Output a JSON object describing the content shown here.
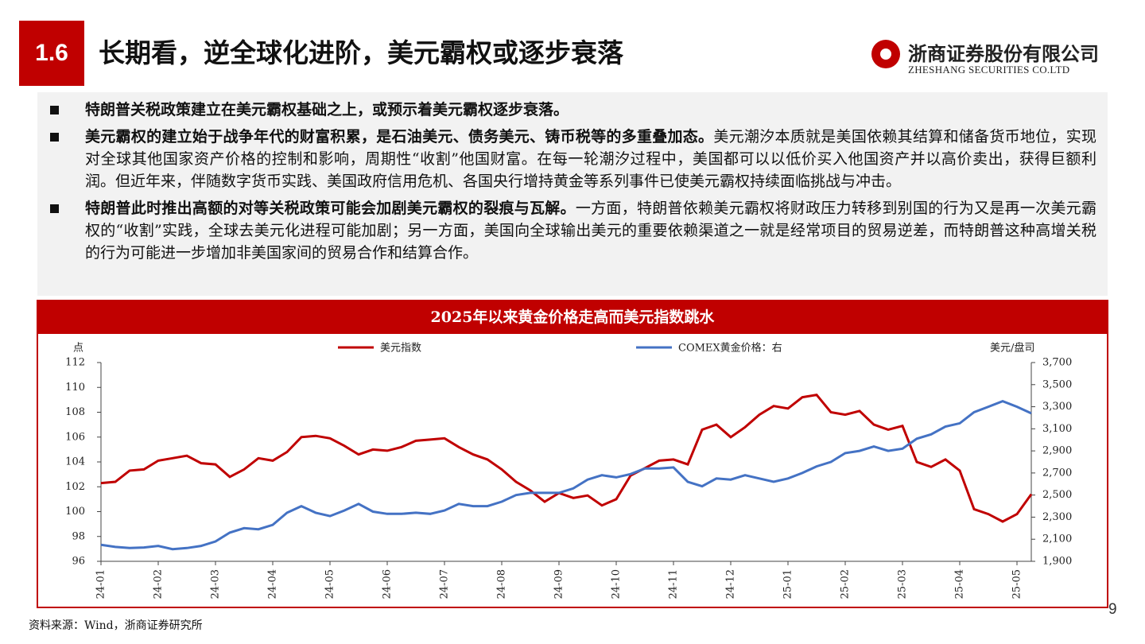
{
  "header": {
    "badge": "1.6",
    "title": "长期看，逆全球化进阶，美元霸权或逐步衰落"
  },
  "logo": {
    "name": "浙商证券股份有限公司",
    "english": "ZHESHANG SECURITIES CO.LTD"
  },
  "bullets": [
    {
      "bold": "特朗普关税政策建立在美元霸权基础之上，或预示着美元霸权逐步衰落。"
    },
    {
      "bold": "美元霸权的建立始于战争年代的财富积累，是石油美元、债务美元、铸币税等的多重叠加态。",
      "text": "美元潮汐本质就是美国依赖其结算和储备货币地位，实现对全球其他国家资产价格的控制和影响，周期性“收割”他国财富。在每一轮潮汐过程中，美国都可以以低价买入他国资产并以高价卖出，获得巨额利润。但近年来，伴随数字货币实践、美国政府信用危机、各国央行增持黄金等系列事件已使美元霸权持续面临挑战与冲击。"
    },
    {
      "bold": "特朗普此时推出高额的对等关税政策可能会加剧美元霸权的裂痕与瓦解。",
      "text": "一方面，特朗普依赖美元霸权将财政压力转移到别国的行为又是再一次美元霸权的“收割”实践，全球去美元化进程可能加剧；另一方面，美国向全球输出美元的重要依赖渠道之一就是经常项目的贸易逆差，而特朗普这种高增关税的行为可能进一步增加非美国家间的贸易合作和结算合作。"
    }
  ],
  "chart_data": {
    "type": "line",
    "title": "2025年以来黄金价格走高而美元指数跳水",
    "y_label": "点",
    "y2_label": "美元/盘司",
    "categories": [
      "24-01",
      null,
      null,
      null,
      "24-02",
      null,
      null,
      null,
      "24-03",
      null,
      null,
      null,
      "24-04",
      null,
      null,
      null,
      "24-05",
      null,
      null,
      null,
      "24-06",
      null,
      null,
      null,
      "24-07",
      null,
      null,
      null,
      "24-08",
      null,
      null,
      null,
      "24-09",
      null,
      null,
      null,
      "24-10",
      null,
      null,
      null,
      "24-11",
      null,
      null,
      null,
      "24-12",
      null,
      null,
      null,
      "25-01",
      null,
      null,
      null,
      "25-02",
      null,
      null,
      null,
      "25-03",
      null,
      null,
      null,
      "25-04",
      null,
      null,
      null,
      "25-05",
      null
    ],
    "series": [
      {
        "name": "美元指数",
        "color": "#c00000",
        "values": [
          102.3,
          102.4,
          103.3,
          103.4,
          104.1,
          104.3,
          104.5,
          103.9,
          103.8,
          102.8,
          103.4,
          104.3,
          104.1,
          104.8,
          106.0,
          106.1,
          105.9,
          105.3,
          104.6,
          105.0,
          104.9,
          105.2,
          105.7,
          105.8,
          105.9,
          105.2,
          104.6,
          104.2,
          103.4,
          102.4,
          101.7,
          100.8,
          101.5,
          101.1,
          101.3,
          100.5,
          101.0,
          102.9,
          103.5,
          104.1,
          104.2,
          103.8,
          106.6,
          107.0,
          106.0,
          106.8,
          107.8,
          108.5,
          108.3,
          109.2,
          109.4,
          108.0,
          107.8,
          108.1,
          107.0,
          106.6,
          106.9,
          104.0,
          103.6,
          104.2,
          103.3,
          100.2,
          99.8,
          99.2,
          99.8,
          101.4
        ]
      },
      {
        "name": "COMEX黄金价格：右",
        "color": "#4472c4",
        "axis": "y2",
        "values": [
          2050,
          2030,
          2020,
          2025,
          2040,
          2010,
          2020,
          2040,
          2080,
          2160,
          2200,
          2190,
          2230,
          2340,
          2400,
          2340,
          2310,
          2360,
          2420,
          2350,
          2330,
          2330,
          2340,
          2330,
          2360,
          2420,
          2400,
          2400,
          2440,
          2500,
          2520,
          2520,
          2520,
          2560,
          2640,
          2680,
          2660,
          2690,
          2740,
          2740,
          2750,
          2620,
          2580,
          2650,
          2640,
          2680,
          2650,
          2620,
          2650,
          2700,
          2760,
          2800,
          2880,
          2900,
          2940,
          2900,
          2920,
          3010,
          3050,
          3120,
          3150,
          3250,
          3300,
          3350,
          3300,
          3240
        ]
      }
    ],
    "ylim": [
      96,
      112
    ],
    "yticks": [
      96,
      98,
      100,
      102,
      104,
      106,
      108,
      110,
      112
    ],
    "y2lim": [
      1900,
      3700
    ],
    "y2ticks": [
      {
        "value": 1900,
        "label": "1,900"
      },
      {
        "value": 2100,
        "label": "2,100"
      },
      {
        "value": 2300,
        "label": "2,300"
      },
      {
        "value": 2500,
        "label": "2,500"
      },
      {
        "value": 2700,
        "label": "2,700"
      },
      {
        "value": 2900,
        "label": "2,900"
      },
      {
        "value": 3100,
        "label": "3,100"
      },
      {
        "value": 3300,
        "label": "3,300"
      },
      {
        "value": 3500,
        "label": "3,500"
      },
      {
        "value": 3700,
        "label": "3,700"
      }
    ]
  },
  "source": "资料来源：Wind，浙商证券研究所",
  "page_number": "9"
}
